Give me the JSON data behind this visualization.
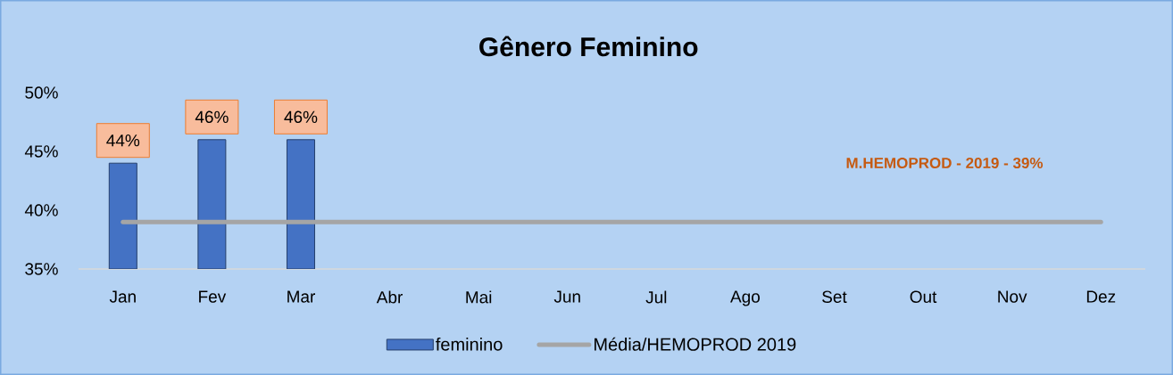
{
  "chart_data": {
    "type": "bar",
    "title": "Gênero Feminino",
    "categories": [
      "Jan",
      "Fev",
      "Mar",
      "Abr",
      "Mai",
      "Jun",
      "Jul",
      "Ago",
      "Set",
      "Out",
      "Nov",
      "Dez"
    ],
    "series": [
      {
        "name": "feminino",
        "color": "#4472c4",
        "values": [
          44,
          46,
          46,
          null,
          null,
          null,
          null,
          null,
          null,
          null,
          null,
          null
        ],
        "value_labels": [
          "44%",
          "46%",
          "46%",
          null,
          null,
          null,
          null,
          null,
          null,
          null,
          null,
          null
        ]
      },
      {
        "name": "Média/HEMOPROD 2019",
        "type": "line",
        "color": "#a5a5a5",
        "values": [
          39,
          39,
          39,
          39,
          39,
          39,
          39,
          39,
          39,
          39,
          39,
          39
        ]
      }
    ],
    "ylim": [
      35,
      50
    ],
    "yticks": [
      {
        "value": 35,
        "label": "35%"
      },
      {
        "value": 40,
        "label": "40%"
      },
      {
        "value": 45,
        "label": "45%"
      },
      {
        "value": 50,
        "label": "50%"
      }
    ],
    "annotations": [
      "M.HEMOPROD - 2019 - 39%"
    ],
    "legend": "bottom"
  }
}
